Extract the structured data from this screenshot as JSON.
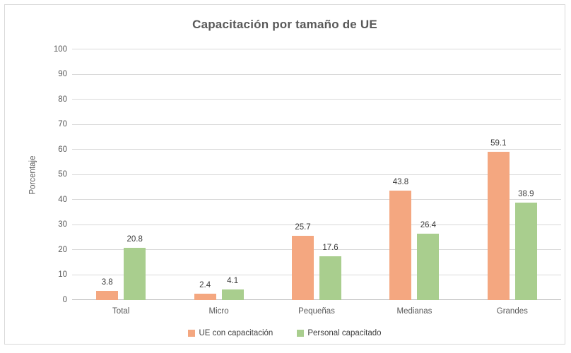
{
  "chart_data": {
    "type": "bar",
    "title": "Capacitación por tamaño de UE",
    "xlabel": "",
    "ylabel": "Porcentaje",
    "categories": [
      "Total",
      "Micro",
      "Pequeñas",
      "Medianas",
      "Grandes"
    ],
    "series": [
      {
        "name": "UE con capacitación",
        "color": "#F4A780",
        "values": [
          3.8,
          2.4,
          25.7,
          43.8,
          59.1
        ]
      },
      {
        "name": "Personal capacitado",
        "color": "#A9CE8E",
        "values": [
          20.8,
          4.1,
          17.6,
          26.4,
          38.9
        ]
      }
    ],
    "ylim": [
      0,
      100
    ],
    "y_ticks": [
      0,
      10,
      20,
      30,
      40,
      50,
      60,
      70,
      80,
      90,
      100
    ],
    "grid": true,
    "legend_position": "bottom",
    "data_labels": true,
    "colors": {
      "title": "#595959",
      "axis_text": "#595959",
      "data_label_text": "#3b3b3b",
      "gridline": "#d9d9d9",
      "axis_line": "#bfbfbf",
      "frame_border": "#d9d9d9"
    }
  }
}
